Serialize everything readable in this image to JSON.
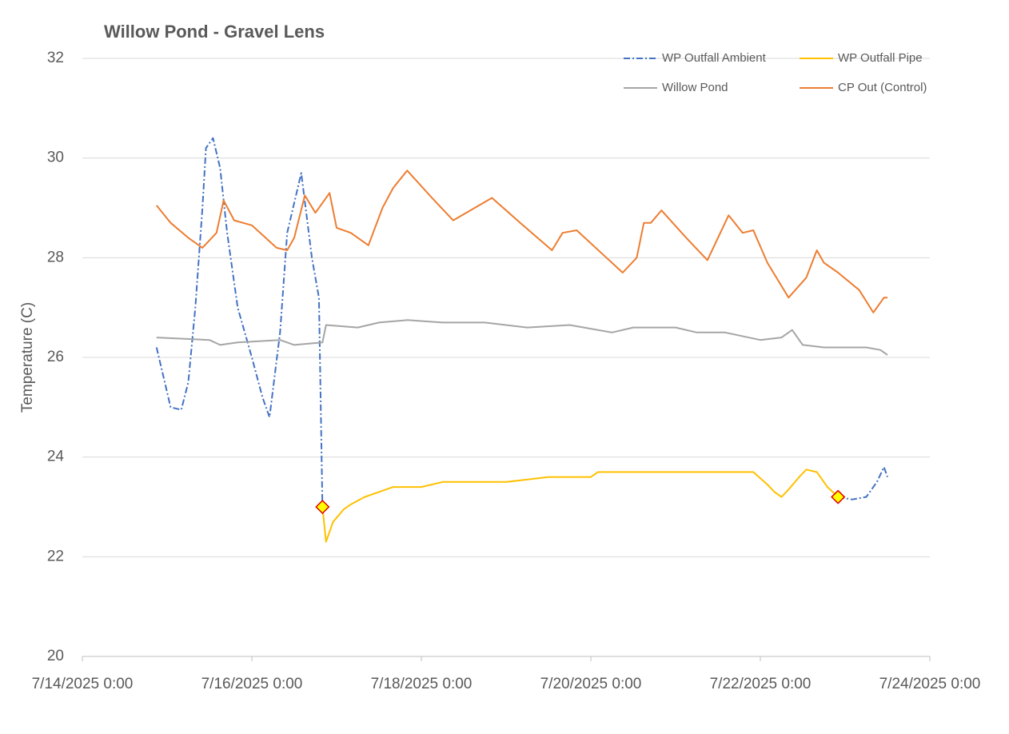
{
  "chart_data": {
    "type": "line",
    "title": "Willow Pond - Gravel Lens",
    "y_label": "Temperature (C)",
    "xlim": [
      "7/14/2025 0:00",
      "7/24/2025 0:00"
    ],
    "xticks": [
      "7/14/2025 0:00",
      "7/16/2025 0:00",
      "7/18/2025 0:00",
      "7/20/2025 0:00",
      "7/22/2025 0:00",
      "7/24/2025 0:00"
    ],
    "ylim": [
      20,
      32
    ],
    "yticks": [
      20,
      22,
      24,
      26,
      28,
      30,
      32
    ],
    "grid": true,
    "legend": "top-right",
    "series": [
      {
        "name": "WP Outfall Ambient",
        "color": "#4472c4",
        "dash": "dash-dot",
        "x": [
          "7/14/2025 21:00",
          "7/14/2025 23:00",
          "7/15/2025 1:00",
          "7/15/2025 4:00",
          "7/15/2025 6:00",
          "7/15/2025 8:00",
          "7/15/2025 10:00",
          "7/15/2025 11:00",
          "7/15/2025 13:00",
          "7/15/2025 15:00",
          "7/15/2025 17:00",
          "7/15/2025 20:00",
          "7/16/2025 0:00",
          "7/16/2025 3:00",
          "7/16/2025 5:00",
          "7/16/2025 8:00",
          "7/16/2025 10:00",
          "7/16/2025 14:00",
          "7/16/2025 17:00",
          "7/16/2025 19:00",
          "7/16/2025 20:00",
          "7/18/2025 0:00",
          "7/22/2025 22:00",
          "7/23/2025 2:00",
          "7/23/2025 6:00",
          "7/23/2025 9:00",
          "7/23/2025 11:00",
          "7/23/2025 12:00"
        ],
        "values": [
          26.2,
          25.6,
          25.0,
          24.95,
          25.5,
          27.0,
          29.0,
          30.2,
          30.4,
          29.8,
          28.5,
          27.0,
          26.0,
          25.2,
          24.8,
          26.5,
          28.5,
          29.7,
          28.0,
          27.2,
          23.0,
          null,
          23.2,
          23.15,
          23.2,
          23.5,
          23.8,
          23.6
        ]
      },
      {
        "name": "WP Outfall Pipe",
        "color": "#ffc000",
        "endpoint_markers": true,
        "marker_color": "#ffff00",
        "marker_edge": "#e00000",
        "x": [
          "7/16/2025 20:00",
          "7/16/2025 21:00",
          "7/16/2025 23:00",
          "7/17/2025 2:00",
          "7/17/2025 4:00",
          "7/17/2025 8:00",
          "7/17/2025 12:00",
          "7/17/2025 16:00",
          "7/18/2025 0:00",
          "7/18/2025 6:00",
          "7/19/2025 0:00",
          "7/19/2025 6:00",
          "7/19/2025 12:00",
          "7/20/2025 0:00",
          "7/20/2025 2:00",
          "7/21/2025 0:00",
          "7/21/2025 22:00",
          "7/22/2025 2:00",
          "7/22/2025 4:00",
          "7/22/2025 6:00",
          "7/22/2025 8:00",
          "7/22/2025 11:00",
          "7/22/2025 13:00",
          "7/22/2025 16:00",
          "7/22/2025 19:00",
          "7/22/2025 22:00"
        ],
        "values": [
          23.0,
          22.3,
          22.7,
          22.95,
          23.05,
          23.2,
          23.3,
          23.4,
          23.4,
          23.5,
          23.5,
          23.55,
          23.6,
          23.6,
          23.7,
          23.7,
          23.7,
          23.45,
          23.3,
          23.2,
          23.35,
          23.6,
          23.75,
          23.7,
          23.4,
          23.2
        ]
      },
      {
        "name": "Willow Pond",
        "color": "#a5a5a5",
        "x": [
          "7/14/2025 21:00",
          "7/15/2025 12:00",
          "7/15/2025 15:00",
          "7/15/2025 20:00",
          "7/16/2025 8:00",
          "7/16/2025 12:00",
          "7/16/2025 20:00",
          "7/16/2025 21:00",
          "7/17/2025 6:00",
          "7/17/2025 12:00",
          "7/17/2025 20:00",
          "7/18/2025 6:00",
          "7/18/2025 18:00",
          "7/19/2025 6:00",
          "7/19/2025 18:00",
          "7/20/2025 6:00",
          "7/20/2025 12:00",
          "7/21/2025 0:00",
          "7/21/2025 6:00",
          "7/21/2025 14:00",
          "7/22/2025 0:00",
          "7/22/2025 6:00",
          "7/22/2025 9:00",
          "7/22/2025 12:00",
          "7/22/2025 18:00",
          "7/23/2025 6:00",
          "7/23/2025 10:00",
          "7/23/2025 12:00"
        ],
        "values": [
          26.4,
          26.35,
          26.25,
          26.3,
          26.35,
          26.25,
          26.3,
          26.65,
          26.6,
          26.7,
          26.75,
          26.7,
          26.7,
          26.6,
          26.65,
          26.5,
          26.6,
          26.6,
          26.5,
          26.5,
          26.35,
          26.4,
          26.55,
          26.25,
          26.2,
          26.2,
          26.15,
          26.05
        ]
      },
      {
        "name": "CP Out (Control)",
        "color": "#ed7d31",
        "x": [
          "7/14/2025 21:00",
          "7/15/2025 1:00",
          "7/15/2025 6:00",
          "7/15/2025 10:00",
          "7/15/2025 14:00",
          "7/15/2025 16:00",
          "7/15/2025 19:00",
          "7/16/2025 0:00",
          "7/16/2025 7:00",
          "7/16/2025 10:00",
          "7/16/2025 12:00",
          "7/16/2025 15:00",
          "7/16/2025 18:00",
          "7/16/2025 22:00",
          "7/17/2025 0:00",
          "7/17/2025 4:00",
          "7/17/2025 9:00",
          "7/17/2025 13:00",
          "7/17/2025 16:00",
          "7/17/2025 20:00",
          "7/18/2025 3:00",
          "7/18/2025 9:00",
          "7/18/2025 20:00",
          "7/19/2025 4:00",
          "7/19/2025 13:00",
          "7/19/2025 16:00",
          "7/19/2025 20:00",
          "7/20/2025 9:00",
          "7/20/2025 13:00",
          "7/20/2025 15:00",
          "7/20/2025 17:00",
          "7/20/2025 20:00",
          "7/21/2025 3:00",
          "7/21/2025 9:00",
          "7/21/2025 15:00",
          "7/21/2025 19:00",
          "7/21/2025 22:00",
          "7/22/2025 2:00",
          "7/22/2025 8:00",
          "7/22/2025 13:00",
          "7/22/2025 16:00",
          "7/22/2025 18:00",
          "7/22/2025 22:00",
          "7/23/2025 4:00",
          "7/23/2025 8:00",
          "7/23/2025 11:00",
          "7/23/2025 12:00"
        ],
        "values": [
          29.05,
          28.7,
          28.4,
          28.2,
          28.5,
          29.15,
          28.75,
          28.65,
          28.2,
          28.15,
          28.4,
          29.25,
          28.9,
          29.3,
          28.6,
          28.5,
          28.25,
          29.0,
          29.4,
          29.75,
          29.2,
          28.75,
          29.2,
          28.7,
          28.15,
          28.5,
          28.55,
          27.7,
          28.0,
          28.7,
          28.7,
          28.95,
          28.4,
          27.95,
          28.85,
          28.5,
          28.55,
          27.9,
          27.2,
          27.6,
          28.15,
          27.9,
          27.7,
          27.35,
          26.9,
          27.2,
          27.2
        ]
      }
    ]
  }
}
